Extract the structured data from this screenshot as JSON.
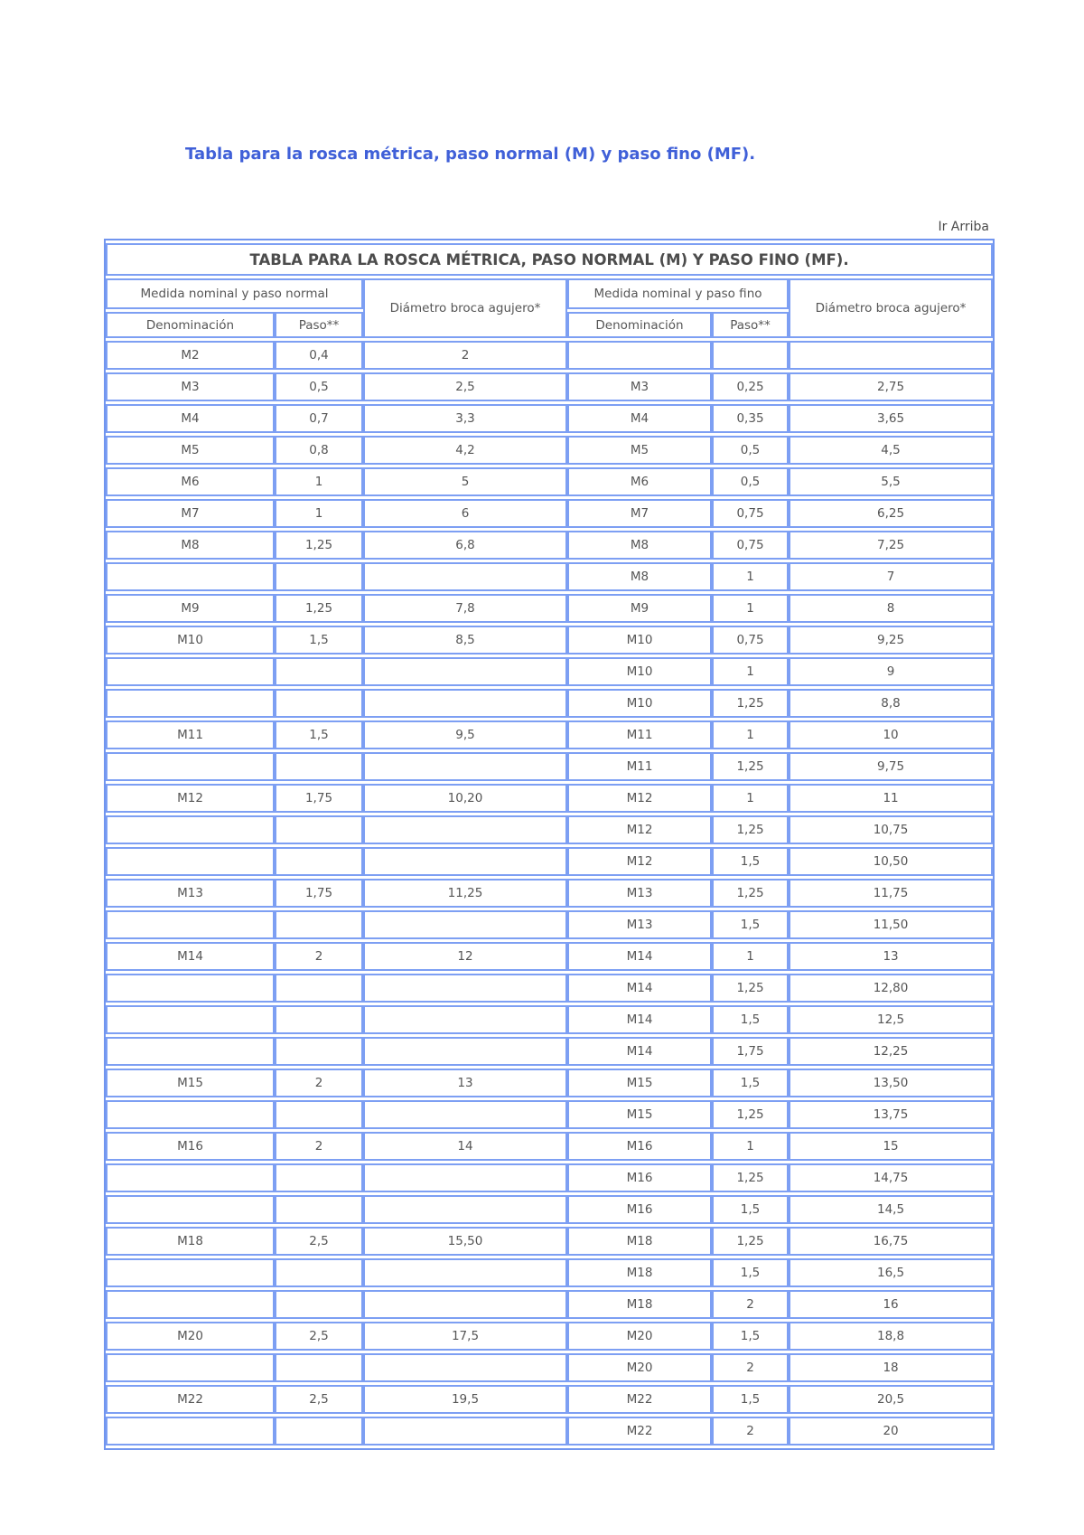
{
  "page": {
    "title": "Tabla para la rosca métrica, paso normal (M) y paso fino (MF).",
    "back_to_top": "Ir Arriba"
  },
  "colors": {
    "heading_blue": "#4060d8",
    "table_border_blue": "#7d9ff3",
    "text_gray": "#565656"
  },
  "table": {
    "caption": "TABLA PARA LA ROSCA MÉTRICA, PASO NORMAL (M) Y PASO FINO (MF).",
    "group_headers": {
      "normal": "Medida nominal y paso normal",
      "drill_normal": "Diámetro broca agujero*",
      "fine": "Medida nominal y paso fino",
      "drill_fine": "Diámetro broca agujero*"
    },
    "sub_headers": {
      "denominacion": "Denominación",
      "paso": "Paso**"
    },
    "rows": [
      [
        "M2",
        "0,4",
        "2",
        "",
        "",
        ""
      ],
      [
        "M3",
        "0,5",
        "2,5",
        "M3",
        "0,25",
        "2,75"
      ],
      [
        "M4",
        "0,7",
        "3,3",
        "M4",
        "0,35",
        "3,65"
      ],
      [
        "M5",
        "0,8",
        "4,2",
        "M5",
        "0,5",
        "4,5"
      ],
      [
        "M6",
        "1",
        "5",
        "M6",
        "0,5",
        "5,5"
      ],
      [
        "M7",
        "1",
        "6",
        "M7",
        "0,75",
        "6,25"
      ],
      [
        "M8",
        "1,25",
        "6,8",
        "M8",
        "0,75",
        "7,25"
      ],
      [
        "",
        "",
        "",
        "M8",
        "1",
        "7"
      ],
      [
        "M9",
        "1,25",
        "7,8",
        "M9",
        "1",
        "8"
      ],
      [
        "M10",
        "1,5",
        "8,5",
        "M10",
        "0,75",
        "9,25"
      ],
      [
        "",
        "",
        "",
        "M10",
        "1",
        "9"
      ],
      [
        "",
        "",
        "",
        "M10",
        "1,25",
        "8,8"
      ],
      [
        "M11",
        "1,5",
        "9,5",
        "M11",
        "1",
        "10"
      ],
      [
        "",
        "",
        "",
        "M11",
        "1,25",
        "9,75"
      ],
      [
        "M12",
        "1,75",
        "10,20",
        "M12",
        "1",
        "11"
      ],
      [
        "",
        "",
        "",
        "M12",
        "1,25",
        "10,75"
      ],
      [
        "",
        "",
        "",
        "M12",
        "1,5",
        "10,50"
      ],
      [
        "M13",
        "1,75",
        "11,25",
        "M13",
        "1,25",
        "11,75"
      ],
      [
        "",
        "",
        "",
        "M13",
        "1,5",
        "11,50"
      ],
      [
        "M14",
        "2",
        "12",
        "M14",
        "1",
        "13"
      ],
      [
        "",
        "",
        "",
        "M14",
        "1,25",
        "12,80"
      ],
      [
        "",
        "",
        "",
        "M14",
        "1,5",
        "12,5"
      ],
      [
        "",
        "",
        "",
        "M14",
        "1,75",
        "12,25"
      ],
      [
        "M15",
        "2",
        "13",
        "M15",
        "1,5",
        "13,50"
      ],
      [
        "",
        "",
        "",
        "M15",
        "1,25",
        "13,75"
      ],
      [
        "M16",
        "2",
        "14",
        "M16",
        "1",
        "15"
      ],
      [
        "",
        "",
        "",
        "M16",
        "1,25",
        "14,75"
      ],
      [
        "",
        "",
        "",
        "M16",
        "1,5",
        "14,5"
      ],
      [
        "M18",
        "2,5",
        "15,50",
        "M18",
        "1,25",
        "16,75"
      ],
      [
        "",
        "",
        "",
        "M18",
        "1,5",
        "16,5"
      ],
      [
        "",
        "",
        "",
        "M18",
        "2",
        "16"
      ],
      [
        "M20",
        "2,5",
        "17,5",
        "M20",
        "1,5",
        "18,8"
      ],
      [
        "",
        "",
        "",
        "M20",
        "2",
        "18"
      ],
      [
        "M22",
        "2,5",
        "19,5",
        "M22",
        "1,5",
        "20,5"
      ],
      [
        "",
        "",
        "",
        "M22",
        "2",
        "20"
      ]
    ]
  }
}
